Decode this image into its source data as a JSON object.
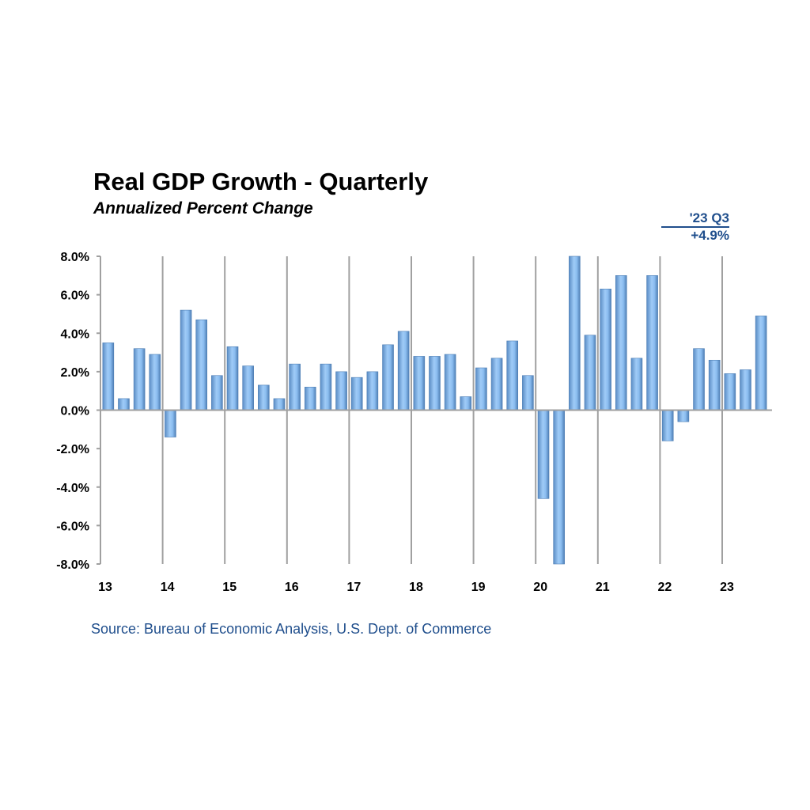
{
  "chart_data": {
    "type": "bar",
    "title": "Real GDP Growth - Quarterly",
    "subtitle": "Annualized  Percent Change",
    "annotation": {
      "label": "'23 Q3",
      "value": "+4.9%"
    },
    "source": "Source: Bureau of Economic Analysis, U.S. Dept. of Commerce",
    "ylim": [
      -8,
      8
    ],
    "yticks": [
      "8.0%",
      "6.0%",
      "4.0%",
      "2.0%",
      "0.0%",
      "-2.0%",
      "-4.0%",
      "-6.0%",
      "-8.0%"
    ],
    "ytick_values": [
      8,
      6,
      4,
      2,
      0,
      -2,
      -4,
      -6,
      -8
    ],
    "xtick_labels": [
      "13",
      "14",
      "15",
      "16",
      "17",
      "18",
      "19",
      "20",
      "21",
      "22",
      "23"
    ],
    "categories": [
      "2013Q1",
      "2013Q2",
      "2013Q3",
      "2013Q4",
      "2014Q1",
      "2014Q2",
      "2014Q3",
      "2014Q4",
      "2015Q1",
      "2015Q2",
      "2015Q3",
      "2015Q4",
      "2016Q1",
      "2016Q2",
      "2016Q3",
      "2016Q4",
      "2017Q1",
      "2017Q2",
      "2017Q3",
      "2017Q4",
      "2018Q1",
      "2018Q2",
      "2018Q3",
      "2018Q4",
      "2019Q1",
      "2019Q2",
      "2019Q3",
      "2019Q4",
      "2020Q1",
      "2020Q2",
      "2020Q3",
      "2020Q4",
      "2021Q1",
      "2021Q2",
      "2021Q3",
      "2021Q4",
      "2022Q1",
      "2022Q2",
      "2022Q3",
      "2022Q4",
      "2023Q1",
      "2023Q2",
      "2023Q3"
    ],
    "values": [
      3.5,
      0.6,
      3.2,
      2.9,
      -1.4,
      5.2,
      4.7,
      1.8,
      3.3,
      2.3,
      1.3,
      0.6,
      2.4,
      1.2,
      2.4,
      2.0,
      1.7,
      2.0,
      3.4,
      4.1,
      2.8,
      2.8,
      2.9,
      0.7,
      2.2,
      2.7,
      3.6,
      1.8,
      -4.6,
      -8.0,
      8.0,
      3.9,
      6.3,
      7.0,
      2.7,
      7.0,
      -1.6,
      -0.6,
      3.2,
      2.6,
      1.9,
      2.1,
      4.9
    ],
    "grid": "vertical lines at year boundaries",
    "colors": {
      "bar": "#8dbff0",
      "bar_edge": "#4f7fb5",
      "text_accent": "#1f4e8c",
      "grid": "#a0a0a0"
    }
  }
}
